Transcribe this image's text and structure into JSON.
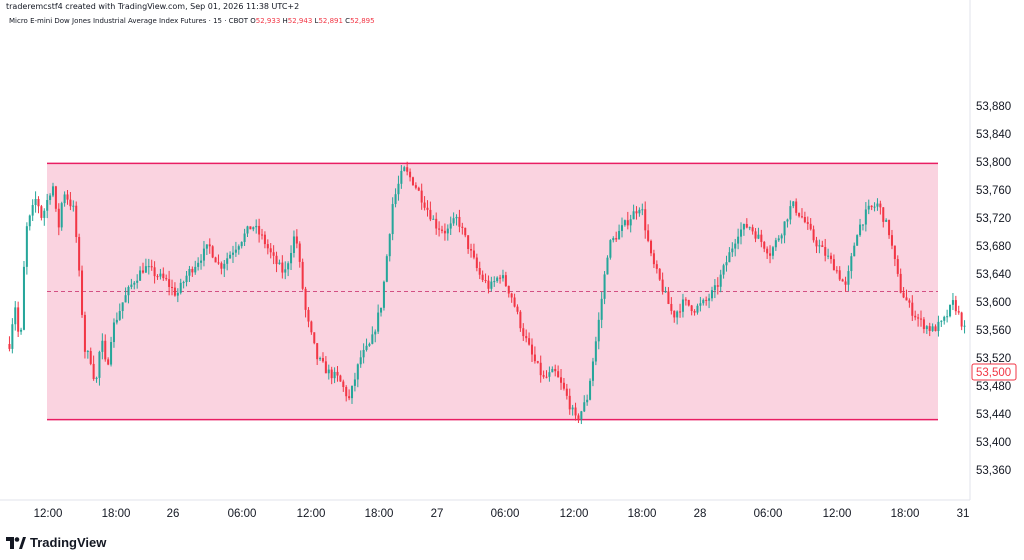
{
  "header": {
    "attribution": "traderemcstf4 created with TradingView.com, Sep 01, 2026 11:38 UTC+2",
    "symbol": "Micro E-mini Dow Jones Industrial Average Index Futures · 15 · CBOT",
    "open_label": "O",
    "open": "52,933",
    "high_label": "H",
    "high": "52,943",
    "low_label": "L",
    "low": "52,891",
    "close_label": "C",
    "close": "52,895"
  },
  "footer": {
    "brand": "TradingView",
    "logo_icon": "tradingview-logo-icon"
  },
  "colors": {
    "up": "#26a69a",
    "down": "#f23645",
    "zone_fill": "#f8bbd0",
    "zone_border": "#e91e63",
    "price_label": "#f23645"
  },
  "chart_data": {
    "type": "candlestick",
    "interval": "15",
    "y_axis": {
      "position": "right",
      "range": [
        53330,
        53910
      ],
      "ticks": [
        53360,
        53400,
        53440,
        53480,
        53520,
        53560,
        53600,
        53640,
        53680,
        53720,
        53760,
        53800,
        53840,
        53880
      ],
      "tick_labels": [
        "53,360",
        "53,400",
        "53,440",
        "53,480",
        "53,520",
        "53,560",
        "53,600",
        "53,640",
        "53,680",
        "53,720",
        "53,760",
        "53,800",
        "53,840",
        "53,880"
      ]
    },
    "x_axis": {
      "tick_labels": [
        "12:00",
        "18:00",
        "26",
        "06:00",
        "12:00",
        "18:00",
        "27",
        "06:00",
        "12:00",
        "18:00",
        "28",
        "06:00",
        "12:00",
        "18:00",
        "31"
      ]
    },
    "last_price": {
      "value": 53500,
      "label": "53,500"
    },
    "range_zone": {
      "top": 53798,
      "bottom": 53432,
      "mid_dashed": 53615
    },
    "price_path": [
      [
        0,
        53540
      ],
      [
        1,
        53600
      ],
      [
        2,
        53530
      ],
      [
        3,
        53700
      ],
      [
        5,
        53750
      ],
      [
        6,
        53720
      ],
      [
        8,
        53770
      ],
      [
        9,
        53700
      ],
      [
        10,
        53760
      ],
      [
        12,
        53730
      ],
      [
        14,
        53530
      ],
      [
        15,
        53520
      ],
      [
        16,
        53480
      ],
      [
        17,
        53550
      ],
      [
        18,
        53500
      ],
      [
        19,
        53560
      ],
      [
        21,
        53600
      ],
      [
        23,
        53630
      ],
      [
        25,
        53650
      ],
      [
        27,
        53640
      ],
      [
        29,
        53630
      ],
      [
        31,
        53610
      ],
      [
        33,
        53640
      ],
      [
        35,
        53660
      ],
      [
        37,
        53680
      ],
      [
        39,
        53650
      ],
      [
        41,
        53670
      ],
      [
        43,
        53690
      ],
      [
        45,
        53710
      ],
      [
        47,
        53690
      ],
      [
        49,
        53660
      ],
      [
        51,
        53640
      ],
      [
        53,
        53700
      ],
      [
        55,
        53580
      ],
      [
        57,
        53520
      ],
      [
        59,
        53500
      ],
      [
        61,
        53490
      ],
      [
        63,
        53460
      ],
      [
        65,
        53520
      ],
      [
        67,
        53540
      ],
      [
        69,
        53600
      ],
      [
        71,
        53740
      ],
      [
        73,
        53790
      ],
      [
        75,
        53770
      ],
      [
        77,
        53740
      ],
      [
        79,
        53710
      ],
      [
        81,
        53700
      ],
      [
        83,
        53720
      ],
      [
        85,
        53680
      ],
      [
        87,
        53640
      ],
      [
        89,
        53620
      ],
      [
        91,
        53640
      ],
      [
        93,
        53610
      ],
      [
        95,
        53560
      ],
      [
        97,
        53520
      ],
      [
        99,
        53490
      ],
      [
        101,
        53500
      ],
      [
        103,
        53470
      ],
      [
        105,
        53430
      ],
      [
        107,
        53460
      ],
      [
        109,
        53560
      ],
      [
        111,
        53680
      ],
      [
        113,
        53700
      ],
      [
        115,
        53720
      ],
      [
        117,
        53740
      ],
      [
        119,
        53660
      ],
      [
        121,
        53620
      ],
      [
        123,
        53580
      ],
      [
        125,
        53600
      ],
      [
        127,
        53590
      ],
      [
        129,
        53600
      ],
      [
        131,
        53620
      ],
      [
        133,
        53660
      ],
      [
        135,
        53700
      ],
      [
        137,
        53710
      ],
      [
        139,
        53690
      ],
      [
        141,
        53670
      ],
      [
        143,
        53700
      ],
      [
        145,
        53740
      ],
      [
        147,
        53720
      ],
      [
        149,
        53690
      ],
      [
        151,
        53670
      ],
      [
        153,
        53650
      ],
      [
        155,
        53620
      ],
      [
        157,
        53700
      ],
      [
        159,
        53730
      ],
      [
        161,
        53740
      ],
      [
        163,
        53700
      ],
      [
        165,
        53620
      ],
      [
        167,
        53590
      ],
      [
        169,
        53570
      ],
      [
        171,
        53560
      ],
      [
        173,
        53570
      ],
      [
        175,
        53600
      ],
      [
        177,
        53560
      ]
    ]
  }
}
